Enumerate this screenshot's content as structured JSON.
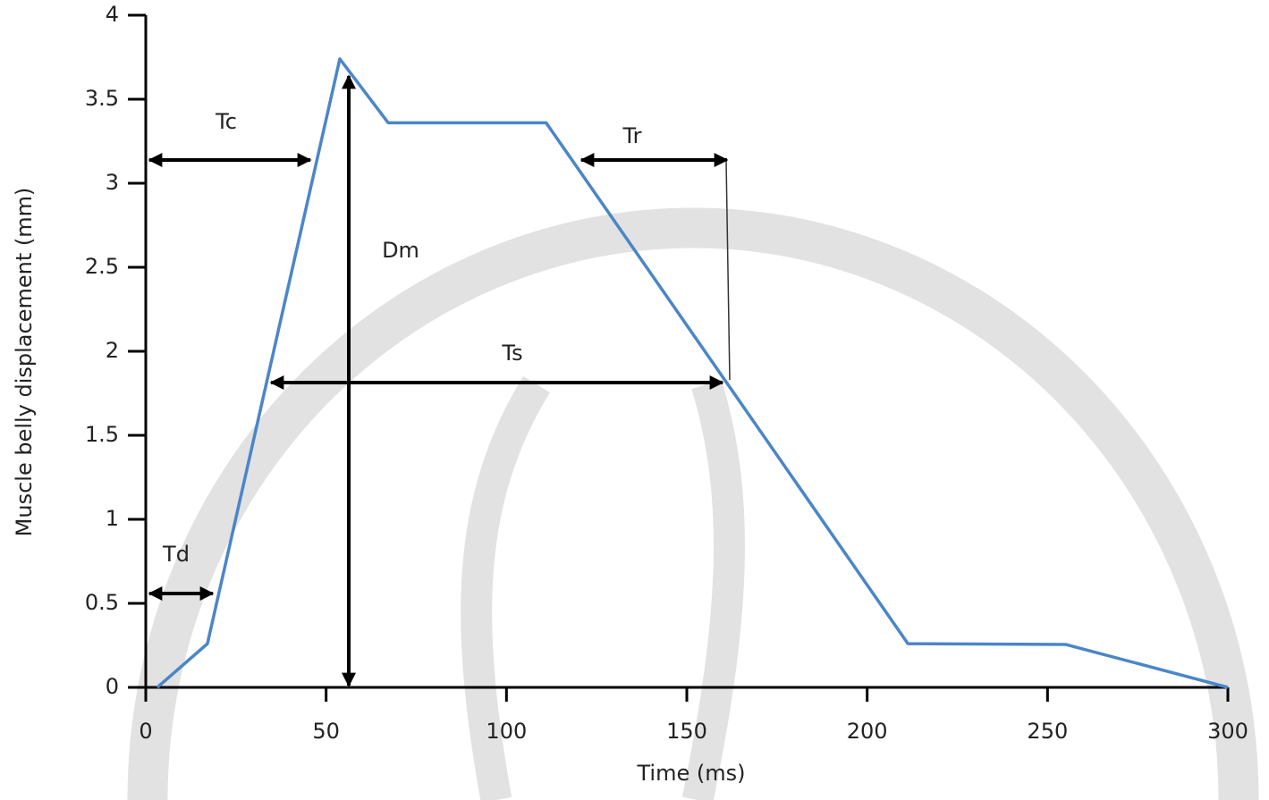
{
  "chart_data": {
    "type": "line",
    "xlabel": "Time (ms)",
    "ylabel": "Muscle belly displacement (mm)",
    "x": [
      3.2,
      17.1,
      53.8,
      67.2,
      111,
      211.3,
      255.1,
      300
    ],
    "values": [
      0,
      0.26,
      3.74,
      3.36,
      3.36,
      0.26,
      0.255,
      0
    ],
    "color": "#4a86c8",
    "xlim": [
      0,
      300
    ],
    "xticks": [
      0,
      50,
      100,
      150,
      200,
      250,
      300
    ],
    "ylim": [
      0,
      4
    ],
    "yticks": [
      0,
      0.5,
      1,
      1.5,
      2,
      2.5,
      3,
      3.5,
      4
    ],
    "grid": false,
    "annotations": [
      "Tc",
      "Td",
      "Dm",
      "Ts",
      "Tr"
    ]
  }
}
